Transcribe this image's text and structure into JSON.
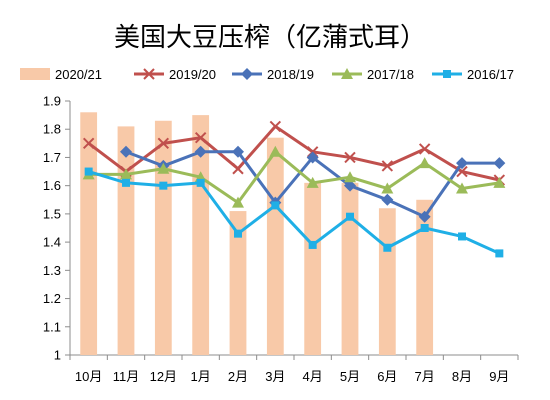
{
  "chart_data": {
    "type": "bar",
    "title": "美国大豆压榨（亿蒲式耳）",
    "categories": [
      "10月",
      "11月",
      "12月",
      "1月",
      "2月",
      "3月",
      "4月",
      "5月",
      "6月",
      "7月",
      "8月",
      "9月"
    ],
    "ylim": [
      1,
      1.9
    ],
    "yticks": [
      1,
      1.1,
      1.2,
      1.3,
      1.4,
      1.5,
      1.6,
      1.7,
      1.8,
      1.9
    ],
    "ytick_labels": [
      "1",
      "1.1",
      "1.2",
      "1.3",
      "1.4",
      "1.5",
      "1.6",
      "1.7",
      "1.8",
      "1.9"
    ],
    "grid": false,
    "legend_position": "top",
    "series": [
      {
        "name": "2020/21",
        "kind": "bar",
        "color": "#f8c9a8",
        "marker": "none",
        "values": [
          1.86,
          1.81,
          1.83,
          1.85,
          1.51,
          1.77,
          1.61,
          1.61,
          1.52,
          1.55,
          null,
          null
        ]
      },
      {
        "name": "2019/20",
        "kind": "line",
        "color": "#c0504d",
        "marker": "x",
        "values": [
          1.75,
          1.65,
          1.75,
          1.77,
          1.66,
          1.81,
          1.72,
          1.7,
          1.67,
          1.73,
          1.65,
          1.62
        ]
      },
      {
        "name": "2018/19",
        "kind": "line",
        "color": "#4a72b8",
        "marker": "diamond",
        "values": [
          null,
          1.72,
          1.67,
          1.72,
          1.72,
          1.54,
          1.7,
          1.6,
          1.55,
          1.49,
          1.68,
          1.68
        ]
      },
      {
        "name": "2017/18",
        "kind": "line",
        "color": "#9bbb59",
        "marker": "triangle",
        "values": [
          1.64,
          1.64,
          1.66,
          1.63,
          1.54,
          1.72,
          1.61,
          1.63,
          1.59,
          1.68,
          1.59,
          1.61
        ]
      },
      {
        "name": "2016/17",
        "kind": "line",
        "color": "#1fafe6",
        "marker": "square",
        "values": [
          1.65,
          1.61,
          1.6,
          1.61,
          1.43,
          1.53,
          1.39,
          1.49,
          1.38,
          1.45,
          1.42,
          1.36
        ]
      }
    ]
  }
}
